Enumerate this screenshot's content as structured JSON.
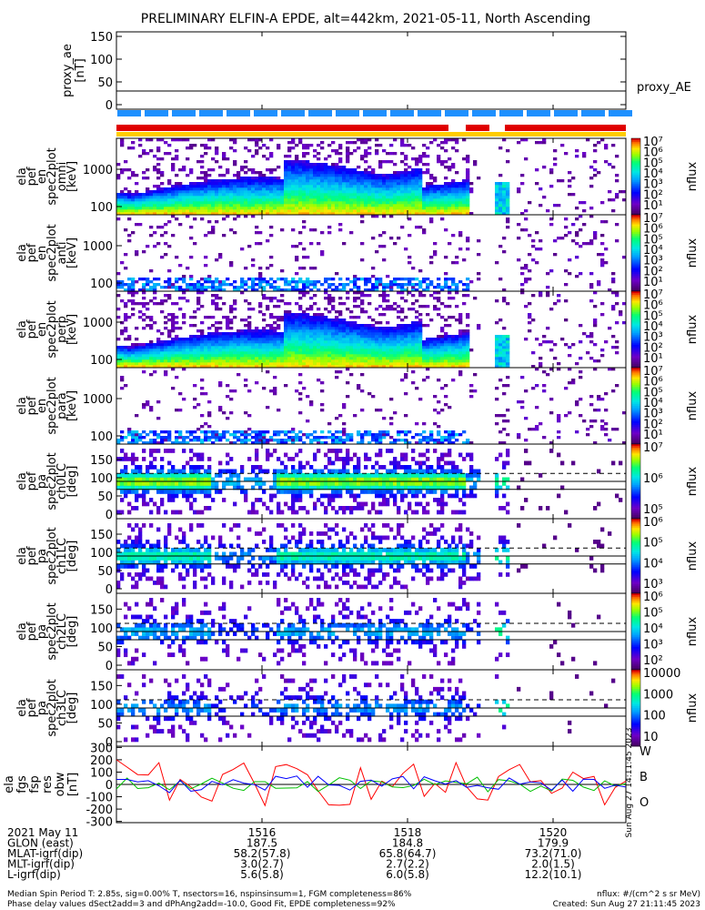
{
  "title": "PRELIMINARY ELFIN-A EPDE, alt=442km, 2021-05-11, North Ascending",
  "chart_data": {
    "type": "heatmap",
    "panels": [
      {
        "name": "proxy_ae",
        "ylabel": [
          "proxy_ae",
          "[nT]"
        ],
        "ticks": [
          0,
          50,
          100,
          150
        ],
        "ylim": [
          -10,
          160
        ],
        "right_label": "proxy_AE",
        "ae_line": 30
      },
      {
        "name": "en_omni",
        "ylabel": [
          "ela",
          "pef",
          "en",
          "spec2plot",
          "omni",
          "[keV]"
        ],
        "ticks": [
          "100",
          "1000"
        ],
        "cb_label": "nflux",
        "cb_ticks": [
          "10⁷",
          "10⁶",
          "10⁵",
          "10⁴",
          "10³",
          "10²",
          "10¹"
        ]
      },
      {
        "name": "en_anti",
        "ylabel": [
          "ela",
          "pef",
          "en",
          "spec2plot",
          "anti",
          "[keV]"
        ],
        "ticks": [
          "100",
          "1000"
        ],
        "cb_label": "nflux",
        "cb_ticks": [
          "10⁷",
          "10⁶",
          "10⁵",
          "10⁴",
          "10³",
          "10²",
          "10¹"
        ]
      },
      {
        "name": "en_perp",
        "ylabel": [
          "ela",
          "pef",
          "en",
          "spec2plot",
          "perp",
          "[keV]"
        ],
        "ticks": [
          "100",
          "1000"
        ],
        "cb_label": "nflux",
        "cb_ticks": [
          "10⁷",
          "10⁶",
          "10⁵",
          "10⁴",
          "10³",
          "10²",
          "10¹"
        ]
      },
      {
        "name": "en_para",
        "ylabel": [
          "ela",
          "pef",
          "en",
          "spec2plot",
          "para",
          "[keV]"
        ],
        "ticks": [
          "100",
          "1000"
        ],
        "cb_label": "nflux",
        "cb_ticks": [
          "10⁷",
          "10⁶",
          "10⁵",
          "10⁴",
          "10³",
          "10²",
          "10¹"
        ]
      },
      {
        "name": "pa_ch0LC",
        "ylabel": [
          "ela",
          "pef",
          "pa",
          "spec2plot",
          "ch0LC",
          "[deg]"
        ],
        "ticks": [
          0,
          50,
          100,
          150
        ],
        "cb_label": "nflux",
        "cb_ticks": [
          "10⁷",
          "10⁶",
          "10⁵"
        ]
      },
      {
        "name": "pa_ch1LC",
        "ylabel": [
          "ela",
          "pef",
          "pa",
          "spec2plot",
          "ch1LC",
          "[deg]"
        ],
        "ticks": [
          0,
          50,
          100,
          150
        ],
        "cb_label": "nflux",
        "cb_ticks": [
          "10⁶",
          "10⁵",
          "10⁴",
          "10³"
        ]
      },
      {
        "name": "pa_ch2LC",
        "ylabel": [
          "ela",
          "pef",
          "pa",
          "spec2plot",
          "ch2LC",
          "[deg]"
        ],
        "ticks": [
          0,
          50,
          100,
          150
        ],
        "cb_label": "nflux",
        "cb_ticks": [
          "10⁶",
          "10⁵",
          "10⁴",
          "10³",
          "10²"
        ]
      },
      {
        "name": "pa_ch3LC",
        "ylabel": [
          "ela",
          "pef",
          "pa",
          "spec2plot",
          "ch3LC",
          "[deg]"
        ],
        "ticks": [
          0,
          50,
          100,
          150
        ],
        "cb_label": "nflux",
        "cb_ticks": [
          "10000",
          "1000",
          "100",
          "10"
        ]
      },
      {
        "name": "fgs_res_obw",
        "ylabel": [
          "ela",
          "fgs",
          "fsp",
          "res",
          "obw",
          "[nT]"
        ],
        "ticks": [
          -300,
          -200,
          -100,
          0,
          100,
          200,
          300
        ],
        "ylim": [
          -310,
          310
        ],
        "legend": [
          "W",
          "B",
          "O"
        ]
      }
    ],
    "x_ticks": [
      "1516",
      "1518",
      "1520"
    ],
    "x_range_minutes": [
      1514.0,
      1521.0
    ],
    "x_tick_minutes": [
      1516,
      1518,
      1520
    ],
    "legend_colors": [
      "#ff0000",
      "#00c000",
      "#0000ff"
    ],
    "footer_table": {
      "rows": [
        {
          "label": "2021 May 11",
          "values": [
            "1516",
            "1518",
            "1520"
          ]
        },
        {
          "label": "GLON (east)",
          "values": [
            "187.5",
            "184.8",
            "179.9"
          ]
        },
        {
          "label": "MLAT-igrf(dip)",
          "values": [
            "58.2(57.8)",
            "65.8(64.7)",
            "73.2(71.0)"
          ]
        },
        {
          "label": "MLT-igrf(dip)",
          "values": [
            "3.0(2.7)",
            "2.7(2.2)",
            "2.0(1.5)"
          ]
        },
        {
          "label": "L-igrf(dip)",
          "values": [
            "5.6(5.8)",
            "6.0(5.8)",
            "12.2(10.1)"
          ]
        }
      ]
    },
    "footer_notes": [
      "Median Spin Period T: 2.85s, sig=0.00% T, nsectors=16, nspinsinsum=1, FGM completeness=86%",
      "Phase delay values dSect2add=3 and dPhAng2add=-10.0, Good Fit, EPDE completeness=92%"
    ],
    "footer_right": [
      "nflux: #/(cm^2 s sr MeV)",
      "Created: Sun Aug 27 21:11:45 2023"
    ],
    "stamp": "Sun Aug 27 14:11:45 2023"
  }
}
